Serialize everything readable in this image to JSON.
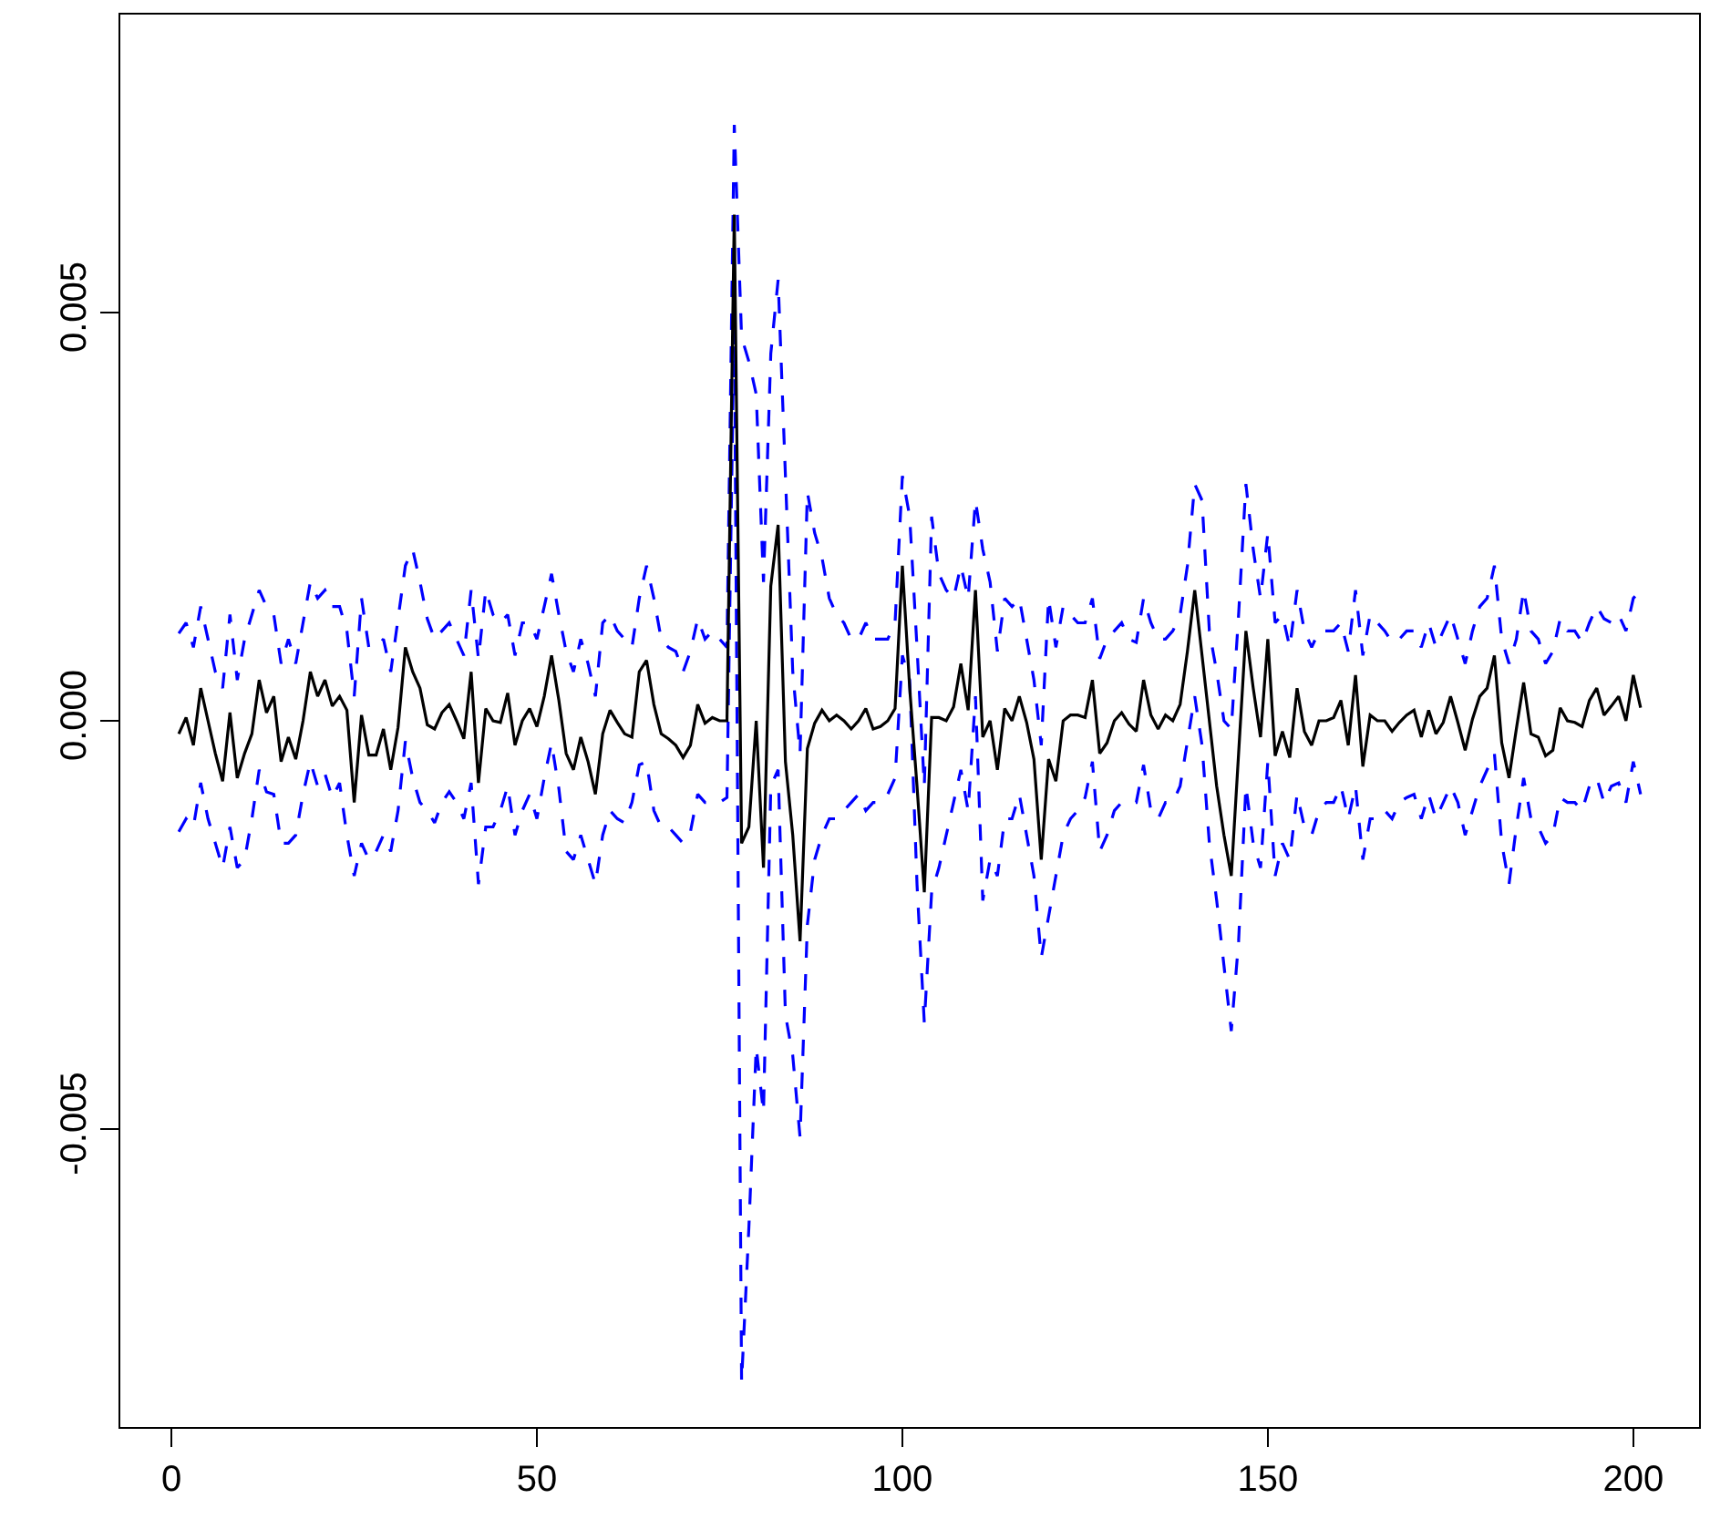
{
  "chart_data": {
    "type": "line",
    "x": [
      1,
      2,
      3,
      4,
      5,
      6,
      7,
      8,
      9,
      10,
      11,
      12,
      13,
      14,
      15,
      16,
      17,
      18,
      19,
      20,
      21,
      22,
      23,
      24,
      25,
      26,
      27,
      28,
      29,
      30,
      31,
      32,
      33,
      34,
      35,
      36,
      37,
      38,
      39,
      40,
      41,
      42,
      43,
      44,
      45,
      46,
      47,
      48,
      49,
      50,
      51,
      52,
      53,
      54,
      55,
      56,
      57,
      58,
      59,
      60,
      61,
      62,
      63,
      64,
      65,
      66,
      67,
      68,
      69,
      70,
      71,
      72,
      73,
      74,
      75,
      76,
      77,
      78,
      79,
      80,
      81,
      82,
      83,
      84,
      85,
      86,
      87,
      88,
      89,
      90,
      91,
      92,
      93,
      94,
      95,
      96,
      97,
      98,
      99,
      100,
      101,
      102,
      103,
      104,
      105,
      106,
      107,
      108,
      109,
      110,
      111,
      112,
      113,
      114,
      115,
      116,
      117,
      118,
      119,
      120,
      121,
      122,
      123,
      124,
      125,
      126,
      127,
      128,
      129,
      130,
      131,
      132,
      133,
      134,
      135,
      136,
      137,
      138,
      139,
      140,
      141,
      142,
      143,
      144,
      145,
      146,
      147,
      148,
      149,
      150,
      151,
      152,
      153,
      154,
      155,
      156,
      157,
      158,
      159,
      160,
      161,
      162,
      163,
      164,
      165,
      166,
      167,
      168,
      169,
      170,
      171,
      172,
      173,
      174,
      175,
      176,
      177,
      178,
      179,
      180,
      181,
      182,
      183,
      184,
      185,
      186,
      187,
      188,
      189,
      190,
      191,
      192,
      193,
      194,
      195,
      196,
      197,
      198,
      199,
      200,
      201
    ],
    "series": [
      {
        "color": "#0000ff",
        "line_style": "dashed",
        "values": [
          0.00107,
          0.0012,
          0.0009,
          0.0014,
          0.001,
          0.0006,
          0.0004,
          0.0013,
          0.0005,
          0.001,
          0.0013,
          0.0016,
          0.0014,
          0.0013,
          0.0007,
          0.001,
          0.0007,
          0.0012,
          0.0017,
          0.0015,
          0.0016,
          0.0014,
          0.0014,
          0.0011,
          0.0003,
          0.0015,
          0.0009,
          0.0009,
          0.001,
          0.0006,
          0.00125,
          0.0019,
          0.0021,
          0.0017,
          0.00125,
          0.001,
          0.0011,
          0.0012,
          0.001,
          0.0008,
          0.0016,
          0.00076,
          0.0016,
          0.0013,
          0.0012,
          0.0013,
          0.0008,
          0.0012,
          0.0012,
          0.001,
          0.0014,
          0.0018,
          0.0013,
          0.00085,
          0.0006,
          0.001,
          0.0007,
          0.0003,
          0.0012,
          0.0013,
          0.0011,
          0.001,
          0.0009,
          0.0015,
          0.0019,
          0.0015,
          0.001,
          0.0009,
          0.00085,
          0.0006,
          0.00085,
          0.00125,
          0.001,
          0.0011,
          0.001,
          0.0009,
          0.0073,
          0.0047,
          0.0044,
          0.004,
          0.0017,
          0.0045,
          0.0054,
          0.003,
          0.0006,
          -0.0004,
          0.0028,
          0.0023,
          0.002,
          0.0015,
          0.0013,
          0.0012,
          0.001,
          0.001,
          0.0012,
          0.001,
          0.001,
          0.001,
          0.0012,
          0.003,
          0.0025,
          0.0009,
          -0.0008,
          0.0025,
          0.0018,
          0.0016,
          0.0015,
          0.0019,
          0.0015,
          0.0027,
          0.0021,
          0.0017,
          0.00085,
          0.0015,
          0.0014,
          0.0015,
          0.001,
          0.0005,
          -0.0003,
          0.0015,
          0.0009,
          0.0014,
          0.0013,
          0.0012,
          0.0012,
          0.0015,
          0.00076,
          0.001,
          0.0011,
          0.0012,
          0.001,
          0.00096,
          0.0015,
          0.0012,
          0.001,
          0.001,
          0.0011,
          0.0013,
          0.0019,
          0.0029,
          0.0027,
          0.0011,
          0.0006,
          0.0,
          -0.0001,
          0.0013,
          0.0029,
          0.0021,
          0.0015,
          0.0023,
          0.0012,
          0.0013,
          0.0009,
          0.0016,
          0.0011,
          0.0009,
          0.0011,
          0.0011,
          0.0011,
          0.0012,
          0.00085,
          0.0016,
          0.0008,
          0.0013,
          0.0012,
          0.0011,
          0.00096,
          0.001,
          0.0011,
          0.0011,
          0.0009,
          0.0012,
          0.0009,
          0.0011,
          0.0013,
          0.001,
          0.0007,
          0.0011,
          0.0014,
          0.0015,
          0.0019,
          0.001,
          0.0007,
          0.001,
          0.0016,
          0.0011,
          0.001,
          0.0007,
          0.00085,
          0.00125,
          0.0011,
          0.0011,
          0.00096,
          0.0012,
          0.0014,
          0.00125,
          0.0012,
          0.0013,
          0.0011,
          0.0015,
          0.0016
        ]
      },
      {
        "color": "#0000ff",
        "line_style": "dashed",
        "values": [
          -0.00136,
          -0.0012,
          -0.0013,
          -0.00076,
          -0.0012,
          -0.0015,
          -0.0018,
          -0.0013,
          -0.0018,
          -0.0017,
          -0.0012,
          -0.0006,
          -0.00087,
          -0.0009,
          -0.0015,
          -0.0015,
          -0.0014,
          -0.0009,
          -0.0005,
          -0.0008,
          -0.00065,
          -0.00094,
          -0.00076,
          -0.0014,
          -0.0019,
          -0.0015,
          -0.0017,
          -0.0016,
          -0.0014,
          -0.0016,
          -0.0011,
          -0.00025,
          -0.0007,
          -0.001,
          -0.0011,
          -0.00125,
          -0.001,
          -0.00087,
          -0.001,
          -0.0012,
          -0.00076,
          -0.002,
          -0.0013,
          -0.0013,
          -0.0011,
          -0.0008,
          -0.0014,
          -0.0011,
          -0.0009,
          -0.0012,
          -0.0007,
          -0.00027,
          -0.00083,
          -0.0016,
          -0.0017,
          -0.0014,
          -0.0017,
          -0.002,
          -0.0014,
          -0.0011,
          -0.0012,
          -0.00125,
          -0.001,
          -0.00054,
          -0.0005,
          -0.0011,
          -0.0013,
          -0.0013,
          -0.0014,
          -0.0015,
          -0.00136,
          -0.0009,
          -0.001,
          -0.001,
          -0.001,
          -0.00094,
          0.005,
          -0.0081,
          -0.0062,
          -0.004,
          -0.0048,
          -0.0008,
          -0.0006,
          -0.0036,
          -0.0041,
          -0.0051,
          -0.0025,
          -0.0017,
          -0.0014,
          -0.0012,
          -0.0012,
          -0.0011,
          -0.001,
          -0.0009,
          -0.0011,
          -0.001,
          -0.001,
          -0.0009,
          -0.0007,
          0.0008,
          0.0005,
          -0.002,
          -0.0037,
          -0.0021,
          -0.0018,
          -0.0014,
          -0.001,
          -0.0006,
          -0.0011,
          0.0003,
          -0.0022,
          -0.0017,
          -0.0019,
          -0.0012,
          -0.0012,
          -0.0009,
          -0.0014,
          -0.0019,
          -0.0029,
          -0.0024,
          -0.0019,
          -0.0014,
          -0.0012,
          -0.0011,
          -0.00094,
          -0.0005,
          -0.0016,
          -0.0014,
          -0.0011,
          -0.001,
          -0.001,
          -0.001,
          -0.00054,
          -0.0011,
          -0.0012,
          -0.001,
          -0.001,
          -0.0008,
          -0.00025,
          0.0003,
          -0.0003,
          -0.0015,
          -0.0022,
          -0.003,
          -0.0038,
          -0.0027,
          -0.0008,
          -0.0015,
          -0.0018,
          -0.0005,
          -0.0019,
          -0.0015,
          -0.0017,
          -0.0009,
          -0.0013,
          -0.0014,
          -0.0011,
          -0.001,
          -0.001,
          -0.0008,
          -0.0012,
          -0.0008,
          -0.0017,
          -0.0012,
          -0.0012,
          -0.0011,
          -0.0012,
          -0.001,
          -0.00094,
          -0.0009,
          -0.0012,
          -0.0009,
          -0.0012,
          -0.001,
          -0.0008,
          -0.001,
          -0.0014,
          -0.0011,
          -0.0008,
          -0.0006,
          -0.0004,
          -0.0015,
          -0.002,
          -0.0013,
          -0.0007,
          -0.0012,
          -0.0013,
          -0.0015,
          -0.0014,
          -0.00094,
          -0.001,
          -0.001,
          -0.0011,
          -0.0008,
          -0.0007,
          -0.001,
          -0.0008,
          -0.00076,
          -0.001,
          -0.0005,
          -0.0009
        ]
      },
      {
        "color": "#000000",
        "line_style": "solid",
        "values": [
          -0.00016,
          4e-05,
          -0.0003,
          0.0004,
          0.0,
          -0.0004,
          -0.00074,
          0.0001,
          -0.0007,
          -0.0004,
          -0.00016,
          0.0005,
          0.0001,
          0.0003,
          -0.0005,
          -0.0002,
          -0.00047,
          0.0,
          0.0006,
          0.0003,
          0.0005,
          0.00018,
          0.0003,
          0.00013,
          -0.001,
          7e-05,
          -0.00042,
          -0.00042,
          -0.0001,
          -0.0006,
          -8e-05,
          0.0009,
          0.0006,
          0.0004,
          -5e-05,
          -0.0001,
          0.0001,
          0.0002,
          0.0,
          -0.00022,
          0.0006,
          -0.00076,
          0.00015,
          0.0,
          -2e-05,
          0.00034,
          -0.0003,
          0.0,
          0.00015,
          -7e-05,
          0.0003,
          0.0008,
          0.00025,
          -0.0004,
          -0.0006,
          -0.0002,
          -0.0005,
          -0.0009,
          -0.00016,
          0.00013,
          -2e-05,
          -0.00016,
          -0.0002,
          0.0006,
          0.00074,
          0.0002,
          -0.00016,
          -0.00022,
          -0.0003,
          -0.00045,
          -0.0003,
          0.0002,
          -3e-05,
          4e-05,
          0.0,
          0.0,
          0.0062,
          -0.0015,
          -0.0013,
          0.0,
          -0.0018,
          0.00165,
          0.0024,
          -0.0005,
          -0.0014,
          -0.0027,
          -0.00034,
          -3e-05,
          0.00013,
          0.0,
          7e-05,
          0.0,
          -0.0001,
          0.0,
          0.00015,
          -0.0001,
          -7e-05,
          0.0,
          0.00015,
          0.0019,
          0.0004,
          -0.0008,
          -0.0021,
          4e-05,
          4e-05,
          0.0,
          0.00017,
          0.0007,
          0.00013,
          0.0016,
          -0.0002,
          0.0,
          -0.0006,
          0.00015,
          0.0,
          0.0003,
          -2e-05,
          -0.00047,
          -0.0017,
          -0.00047,
          -0.00074,
          0.0,
          7e-05,
          7e-05,
          4e-05,
          0.0005,
          -0.0004,
          -0.00027,
          0.0,
          0.0001,
          -4e-05,
          -0.00013,
          0.0005,
          7e-05,
          -0.0001,
          7e-05,
          0.0,
          0.0002,
          0.00085,
          0.0016,
          0.0008,
          0.0,
          -0.0008,
          -0.0014,
          -0.0019,
          -0.0004,
          0.0011,
          0.0004,
          -0.0002,
          0.001,
          -0.00043,
          -0.00013,
          -0.00045,
          0.0004,
          -0.00013,
          -0.0003,
          0.0,
          0.0,
          4e-05,
          0.00025,
          -0.0003,
          0.00056,
          -0.00056,
          7e-05,
          0.0,
          0.0,
          -0.00013,
          -2e-05,
          7e-05,
          0.00013,
          -0.0002,
          0.00013,
          -0.00016,
          -2e-05,
          0.0003,
          -2e-05,
          -0.00036,
          2e-05,
          0.0003,
          0.0004,
          0.0008,
          -0.00027,
          -0.0007,
          -0.0001,
          0.00047,
          -0.00016,
          -0.0002,
          -0.00043,
          -0.00036,
          0.00016,
          0.0,
          -2e-05,
          -7e-05,
          0.00025,
          0.0004,
          7e-05,
          0.00018,
          0.0003,
          0.0,
          0.00056,
          0.00016
        ]
      }
    ],
    "xlim": [
      -7,
      209
    ],
    "xticks": [
      0,
      50,
      100,
      150,
      200
    ],
    "ylim": [
      -0.00865,
      0.00865
    ],
    "yticks": [
      -0.005,
      {
        "value": 0,
        "label": "0.000"
      },
      0.005
    ],
    "marker": "none"
  }
}
